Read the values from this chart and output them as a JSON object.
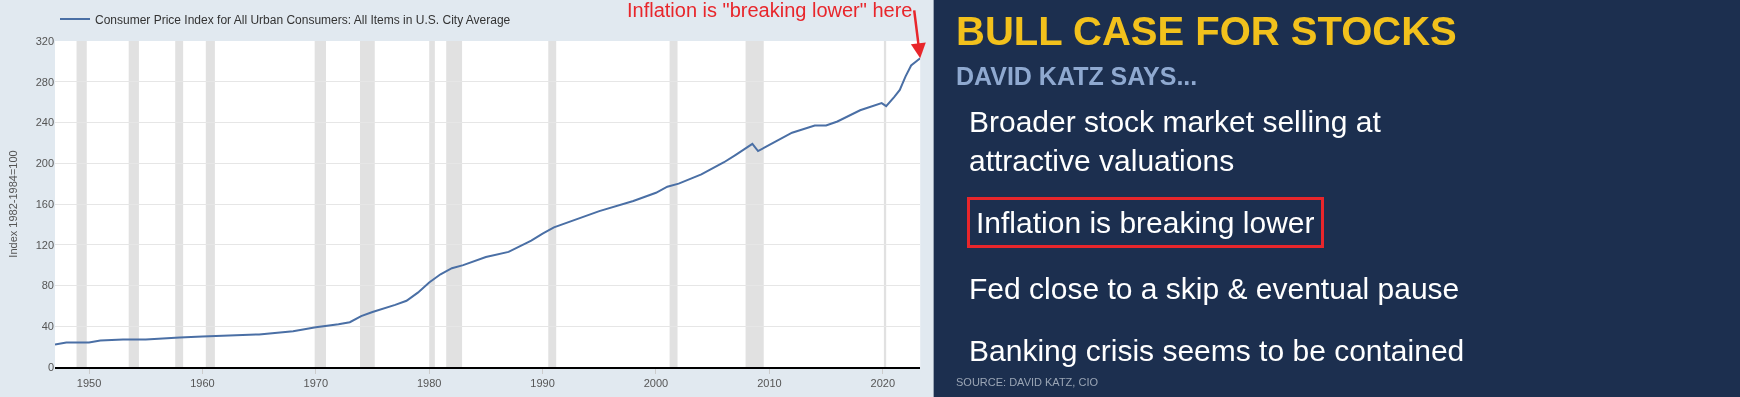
{
  "chart_data": [
    {
      "type": "line",
      "ylabel": "Index 1982-1984=100",
      "series": [
        {
          "name": "Consumer Price Index for All Urban Consumers: All Items in U.S. City Average",
          "color": "#4a6fa5",
          "x": [
            1947,
            1948,
            1949,
            1950,
            1951,
            1953,
            1955,
            1958,
            1960,
            1965,
            1968,
            1970,
            1972,
            1973,
            1974,
            1975,
            1977,
            1978,
            1979,
            1980,
            1981,
            1982,
            1983,
            1985,
            1987,
            1989,
            1990,
            1991,
            1995,
            1998,
            2000,
            2001,
            2002,
            2004,
            2006,
            2007,
            2008.5,
            2009,
            2010,
            2012,
            2014,
            2015,
            2016,
            2018,
            2019.9,
            2020.3,
            2021,
            2021.5,
            2022,
            2022.5,
            2023.3
          ],
          "values": [
            22,
            24,
            24,
            24,
            26,
            27,
            27,
            29,
            30,
            32,
            35,
            39,
            42,
            44,
            50,
            54,
            61,
            65,
            73,
            83,
            91,
            97,
            100,
            108,
            113,
            124,
            131,
            137,
            153,
            163,
            171,
            177,
            180,
            189,
            201,
            208,
            219,
            212,
            218,
            230,
            237,
            237,
            241,
            252,
            259,
            256,
            265,
            272,
            285,
            296,
            303
          ]
        }
      ],
      "xlim": [
        1947,
        2023.3
      ],
      "xticks": [
        1950,
        1960,
        1970,
        1980,
        1990,
        2000,
        2010,
        2020
      ],
      "ylim": [
        0,
        320
      ],
      "yticks": [
        0,
        40,
        80,
        120,
        160,
        200,
        240,
        280,
        320
      ],
      "grid": "y",
      "legend": "top left",
      "marker": "none",
      "line_style": "solid",
      "bands": [
        {
          "axis": "x",
          "from": 1948.9,
          "to": 1949.8,
          "color": "#e1e1e1"
        },
        {
          "axis": "x",
          "from": 1953.5,
          "to": 1954.4,
          "color": "#e1e1e1"
        },
        {
          "axis": "x",
          "from": 1957.6,
          "to": 1958.3,
          "color": "#e1e1e1"
        },
        {
          "axis": "x",
          "from": 1960.3,
          "to": 1961.1,
          "color": "#e1e1e1"
        },
        {
          "axis": "x",
          "from": 1969.9,
          "to": 1970.9,
          "color": "#e1e1e1"
        },
        {
          "axis": "x",
          "from": 1973.9,
          "to": 1975.2,
          "color": "#e1e1e1"
        },
        {
          "axis": "x",
          "from": 1980.0,
          "to": 1980.5,
          "color": "#e1e1e1"
        },
        {
          "axis": "x",
          "from": 1981.5,
          "to": 1982.9,
          "color": "#e1e1e1"
        },
        {
          "axis": "x",
          "from": 1990.5,
          "to": 1991.2,
          "color": "#e1e1e1"
        },
        {
          "axis": "x",
          "from": 2001.2,
          "to": 2001.9,
          "color": "#e1e1e1"
        },
        {
          "axis": "x",
          "from": 2007.9,
          "to": 2009.5,
          "color": "#e1e1e1"
        },
        {
          "axis": "x",
          "from": 2020.1,
          "to": 2020.3,
          "color": "#e1e1e1"
        }
      ],
      "annotations": [
        {
          "text": "Inflation is \"breaking lower\" here",
          "x": 2023.3,
          "y": 303
        }
      ]
    },
    {
      "type": "other",
      "title": "BULL CASE FOR STOCKS",
      "subtitle": "DAVID KATZ SAYS...",
      "annotations": [
        "Broader stock market selling at attractive valuations",
        "Inflation is breaking lower",
        "Fed close to a skip & eventual pause",
        "Banking crisis seems to be contained",
        "SOURCE: DAVID KATZ, CIO"
      ]
    }
  ]
}
